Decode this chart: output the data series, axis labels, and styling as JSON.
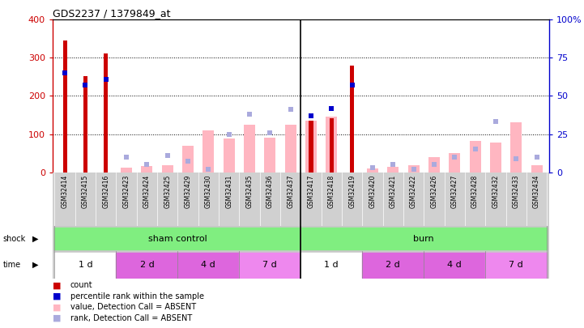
{
  "title": "GDS2237 / 1379849_at",
  "samples": [
    "GSM32414",
    "GSM32415",
    "GSM32416",
    "GSM32423",
    "GSM32424",
    "GSM32425",
    "GSM32429",
    "GSM32430",
    "GSM32431",
    "GSM32435",
    "GSM32436",
    "GSM32437",
    "GSM32417",
    "GSM32418",
    "GSM32419",
    "GSM32420",
    "GSM32421",
    "GSM32422",
    "GSM32426",
    "GSM32427",
    "GSM32428",
    "GSM32432",
    "GSM32433",
    "GSM32434"
  ],
  "count": [
    345,
    253,
    311,
    0,
    0,
    0,
    0,
    0,
    0,
    0,
    0,
    0,
    135,
    142,
    280,
    0,
    0,
    0,
    0,
    0,
    0,
    0,
    0,
    0
  ],
  "percentile_rank": [
    65,
    57,
    61,
    0,
    0,
    0,
    0,
    0,
    0,
    0,
    0,
    0,
    37,
    42,
    57,
    0,
    0,
    0,
    0,
    0,
    0,
    0,
    0,
    0
  ],
  "absent_value": [
    0,
    0,
    0,
    12,
    16,
    18,
    70,
    110,
    88,
    125,
    90,
    125,
    135,
    145,
    0,
    10,
    15,
    18,
    40,
    50,
    82,
    78,
    130,
    18
  ],
  "absent_rank": [
    0,
    0,
    0,
    10,
    5,
    11,
    7,
    2,
    25,
    38,
    26,
    41,
    0,
    0,
    0,
    3,
    5,
    2,
    5,
    10,
    15,
    33,
    9,
    10
  ],
  "ylim_left": [
    0,
    400
  ],
  "ylim_right": [
    0,
    100
  ],
  "yticks_left": [
    0,
    100,
    200,
    300,
    400
  ],
  "yticks_right": [
    0,
    25,
    50,
    75,
    100
  ],
  "ytick_labels_right": [
    "0",
    "25",
    "50",
    "75",
    "100%"
  ],
  "count_color": "#CC0000",
  "percentile_color": "#0000CC",
  "absent_value_color": "#FFB6C1",
  "absent_rank_color": "#AAAADD",
  "plot_bg": "#FFFFFF",
  "tick_label_bg": "#D0D0D0",
  "shock_bg": "#D0D0D0",
  "time_bg": "#D0D0D0",
  "shock_fill": "#80EE80",
  "time_colors": [
    "#FFFFFF",
    "#DD66DD",
    "#DD66DD",
    "#EE88EE",
    "#FFFFFF",
    "#DD66DD",
    "#DD66DD",
    "#EE88EE"
  ],
  "shock_groups": [
    {
      "label": "sham control",
      "start": 0,
      "end": 12
    },
    {
      "label": "burn",
      "start": 12,
      "end": 24
    }
  ],
  "time_groups": [
    {
      "label": "1 d",
      "start": 0,
      "end": 3
    },
    {
      "label": "2 d",
      "start": 3,
      "end": 6
    },
    {
      "label": "4 d",
      "start": 6,
      "end": 9
    },
    {
      "label": "7 d",
      "start": 9,
      "end": 12
    },
    {
      "label": "1 d",
      "start": 12,
      "end": 15
    },
    {
      "label": "2 d",
      "start": 15,
      "end": 18
    },
    {
      "label": "4 d",
      "start": 18,
      "end": 21
    },
    {
      "label": "7 d",
      "start": 21,
      "end": 24
    }
  ]
}
